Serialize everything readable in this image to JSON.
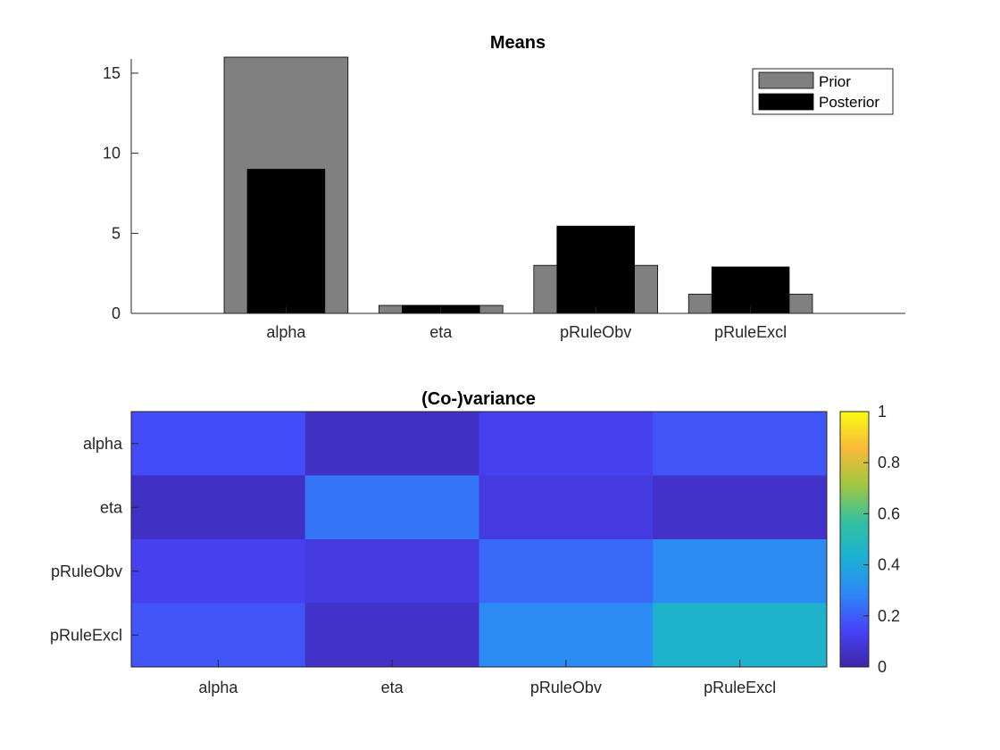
{
  "colors": {
    "prior": "#808080",
    "posterior": "#000000",
    "axis": "#262626",
    "background": "#ffffff",
    "parula": [
      "#3e26a8",
      "#4743f8",
      "#2e87f7",
      "#1bb1d3",
      "#34bf9f",
      "#a1c741",
      "#f9ba38",
      "#f9fb14"
    ]
  },
  "chart_data": [
    {
      "type": "bar",
      "title": "Means",
      "categories": [
        "alpha",
        "eta",
        "pRuleObv",
        "pRuleExcl"
      ],
      "series": [
        {
          "name": "Prior",
          "values": [
            16,
            0.5,
            3,
            1.2
          ]
        },
        {
          "name": "Posterior",
          "values": [
            9,
            0.5,
            5.45,
            2.9
          ]
        }
      ],
      "xlim": [
        0,
        5
      ],
      "ylim": [
        0,
        16
      ],
      "yticks": [
        0,
        5,
        10,
        15
      ],
      "xlabel": "",
      "ylabel": "",
      "legend": {
        "entries": [
          "Prior",
          "Posterior"
        ],
        "location": "top-right"
      }
    },
    {
      "type": "heatmap",
      "title": "(Co-)variance",
      "x_labels": [
        "alpha",
        "eta",
        "pRuleObv",
        "pRuleExcl"
      ],
      "y_labels": [
        "alpha",
        "eta",
        "pRuleObv",
        "pRuleExcl"
      ],
      "values": [
        [
          0.16,
          0.05,
          0.13,
          0.18
        ],
        [
          0.05,
          0.25,
          0.1,
          0.06
        ],
        [
          0.13,
          0.1,
          0.22,
          0.3
        ],
        [
          0.18,
          0.06,
          0.3,
          0.45
        ]
      ],
      "clim": [
        0,
        1
      ],
      "colorbar": {
        "ticks": [
          0,
          0.2,
          0.4,
          0.6,
          0.8,
          1
        ],
        "labels": [
          "0",
          "0.2",
          "0.4",
          "0.6",
          "0.8",
          "1"
        ]
      }
    }
  ]
}
